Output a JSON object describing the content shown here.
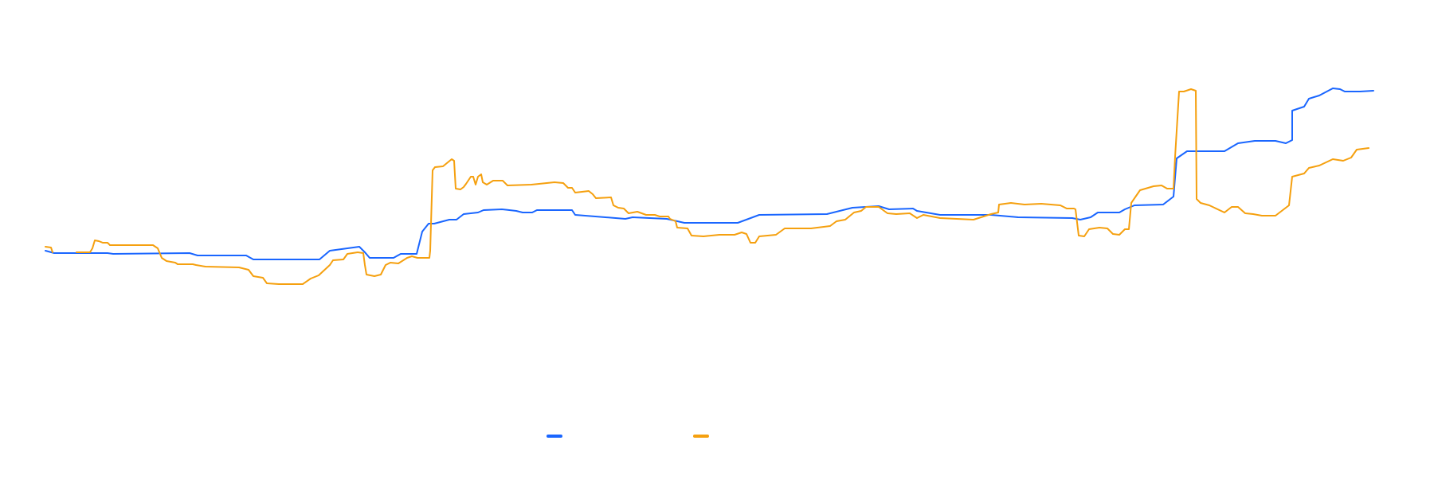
{
  "chart_data": {
    "type": "line",
    "title": "",
    "xlabel": "",
    "ylabel": "",
    "grid": false,
    "legend_placement": "bottom-center",
    "xlim": [
      0,
      1800
    ],
    "ylim": [
      -227,
      400
    ],
    "series": [
      {
        "name": "",
        "color": "#1a66ff",
        "segments": [
          [
            [
              57,
              85
            ],
            [
              68,
              82
            ],
            [
              135,
              82
            ],
            [
              142,
              81
            ],
            [
              238,
              82
            ],
            [
              248,
              79
            ],
            [
              309,
              79
            ],
            [
              318,
              74
            ],
            [
              401,
              74
            ],
            [
              414,
              85
            ],
            [
              451,
              90
            ],
            [
              458,
              83
            ],
            [
              464,
              76
            ],
            [
              494,
              76
            ],
            [
              503,
              81
            ],
            [
              523,
              81
            ],
            [
              530,
              109
            ],
            [
              538,
              119
            ],
            [
              545,
              119
            ],
            [
              564,
              124
            ],
            [
              573,
              124
            ],
            [
              582,
              131
            ],
            [
              600,
              133
            ],
            [
              607,
              136
            ],
            [
              630,
              137
            ],
            [
              648,
              135
            ],
            [
              656,
              133
            ],
            [
              668,
              133
            ],
            [
              674,
              136
            ],
            [
              685,
              136
            ],
            [
              718,
              136
            ],
            [
              722,
              130
            ],
            [
              785,
              125
            ],
            [
              794,
              127
            ],
            [
              837,
              125
            ],
            [
              859,
              120
            ],
            [
              926,
              120
            ],
            [
              953,
              130
            ],
            [
              1038,
              131
            ],
            [
              1070,
              139
            ],
            [
              1103,
              141
            ],
            [
              1116,
              137
            ],
            [
              1146,
              138
            ],
            [
              1151,
              135
            ],
            [
              1180,
              130
            ],
            [
              1244,
              130
            ],
            [
              1278,
              127
            ],
            [
              1346,
              126
            ],
            [
              1356,
              124
            ],
            [
              1369,
              127
            ],
            [
              1378,
              133
            ],
            [
              1405,
              133
            ],
            [
              1412,
              137
            ],
            [
              1424,
              142
            ],
            [
              1460,
              143
            ],
            [
              1473,
              153
            ],
            [
              1477,
              201
            ],
            [
              1490,
              210
            ],
            [
              1537,
              210
            ],
            [
              1554,
              220
            ],
            [
              1575,
              223
            ],
            [
              1601,
              223
            ],
            [
              1614,
              220
            ],
            [
              1622,
              224
            ],
            [
              1622,
              261
            ],
            [
              1637,
              266
            ],
            [
              1643,
              276
            ],
            [
              1656,
              280
            ],
            [
              1673,
              289
            ],
            [
              1682,
              288
            ],
            [
              1688,
              285
            ],
            [
              1707,
              285
            ],
            [
              1724,
              286
            ]
          ]
        ]
      },
      {
        "name": "",
        "color": "#f5a00f",
        "segments": [
          [
            [
              57,
              90
            ],
            [
              64,
              89
            ],
            [
              66,
              83
            ]
          ],
          [
            [
              96,
              83
            ],
            [
              113,
              83
            ],
            [
              116,
              88
            ],
            [
              119,
              98
            ],
            [
              124,
              97
            ],
            [
              129,
              95
            ],
            [
              135,
              95
            ],
            [
              138,
              92
            ],
            [
              192,
              92
            ],
            [
              198,
              88
            ],
            [
              203,
              76
            ],
            [
              209,
              72
            ],
            [
              220,
              70
            ],
            [
              223,
              68
            ],
            [
              242,
              68
            ],
            [
              246,
              67
            ],
            [
              258,
              65
            ],
            [
              300,
              64
            ],
            [
              312,
              61
            ],
            [
              318,
              53
            ],
            [
              330,
              51
            ],
            [
              335,
              44
            ],
            [
              350,
              43
            ],
            [
              380,
              43
            ],
            [
              390,
              50
            ],
            [
              400,
              54
            ],
            [
              414,
              67
            ],
            [
              418,
              73
            ],
            [
              431,
              74
            ],
            [
              436,
              81
            ],
            [
              449,
              83
            ],
            [
              456,
              82
            ],
            [
              458,
              67
            ],
            [
              460,
              55
            ],
            [
              470,
              53
            ],
            [
              478,
              55
            ],
            [
              484,
              67
            ],
            [
              490,
              70
            ],
            [
              500,
              69
            ],
            [
              511,
              76
            ],
            [
              517,
              78
            ],
            [
              524,
              76
            ],
            [
              539,
              76
            ],
            [
              540,
              85
            ],
            [
              543,
              186
            ],
            [
              546,
              190
            ],
            [
              556,
              191
            ],
            [
              567,
              200
            ],
            [
              570,
              198
            ],
            [
              572,
              163
            ],
            [
              578,
              162
            ],
            [
              582,
              165
            ],
            [
              585,
              169
            ],
            [
              591,
              178
            ],
            [
              594,
              178
            ],
            [
              597,
              168
            ],
            [
              600,
              178
            ],
            [
              604,
              181
            ],
            [
              606,
              171
            ],
            [
              611,
              168
            ],
            [
              619,
              173
            ],
            [
              631,
              173
            ],
            [
              637,
              167
            ],
            [
              667,
              168
            ],
            [
              696,
              171
            ],
            [
              707,
              170
            ],
            [
              713,
              164
            ],
            [
              718,
              164
            ],
            [
              722,
              158
            ],
            [
              739,
              160
            ],
            [
              744,
              156
            ],
            [
              748,
              151
            ],
            [
              767,
              152
            ],
            [
              770,
              142
            ],
            [
              776,
              139
            ],
            [
              783,
              138
            ],
            [
              789,
              132
            ],
            [
              800,
              134
            ],
            [
              811,
              130
            ],
            [
              822,
              130
            ],
            [
              828,
              128
            ],
            [
              839,
              128
            ],
            [
              841,
              125
            ],
            [
              848,
              122
            ],
            [
              850,
              114
            ],
            [
              863,
              113
            ],
            [
              868,
              104
            ],
            [
              883,
              103
            ],
            [
              903,
              105
            ],
            [
              922,
              105
            ],
            [
              931,
              108
            ],
            [
              937,
              106
            ],
            [
              942,
              95
            ],
            [
              948,
              95
            ],
            [
              953,
              103
            ],
            [
              974,
              105
            ],
            [
              985,
              113
            ],
            [
              1018,
              113
            ],
            [
              1042,
              116
            ],
            [
              1050,
              122
            ],
            [
              1061,
              124
            ],
            [
              1072,
              133
            ],
            [
              1081,
              135
            ],
            [
              1087,
              140
            ],
            [
              1103,
              140
            ],
            [
              1114,
              132
            ],
            [
              1125,
              131
            ],
            [
              1142,
              132
            ],
            [
              1151,
              126
            ],
            [
              1159,
              130
            ],
            [
              1180,
              126
            ],
            [
              1222,
              124
            ],
            [
              1244,
              131
            ],
            [
              1253,
              133
            ],
            [
              1254,
              143
            ],
            [
              1269,
              145
            ],
            [
              1286,
              143
            ],
            [
              1307,
              144
            ],
            [
              1331,
              142
            ],
            [
              1339,
              138
            ],
            [
              1348,
              138
            ],
            [
              1350,
              137
            ],
            [
              1354,
              104
            ],
            [
              1361,
              103
            ],
            [
              1367,
              112
            ],
            [
              1380,
              114
            ],
            [
              1390,
              113
            ],
            [
              1397,
              106
            ],
            [
              1405,
              105
            ],
            [
              1412,
              112
            ],
            [
              1417,
              112
            ],
            [
              1420,
              145
            ],
            [
              1431,
              161
            ],
            [
              1448,
              166
            ],
            [
              1458,
              167
            ],
            [
              1465,
              163
            ],
            [
              1473,
              163
            ],
            [
              1475,
              203
            ],
            [
              1480,
              285
            ],
            [
              1486,
              285
            ],
            [
              1495,
              288
            ],
            [
              1501,
              286
            ],
            [
              1502,
              150
            ],
            [
              1507,
              145
            ],
            [
              1518,
              142
            ],
            [
              1537,
              133
            ],
            [
              1546,
              140
            ],
            [
              1554,
              140
            ],
            [
              1563,
              132
            ],
            [
              1573,
              131
            ],
            [
              1584,
              129
            ],
            [
              1601,
              129
            ],
            [
              1618,
              142
            ],
            [
              1622,
              178
            ],
            [
              1637,
              182
            ],
            [
              1643,
              189
            ],
            [
              1656,
              192
            ],
            [
              1673,
              200
            ],
            [
              1686,
              198
            ],
            [
              1696,
              202
            ],
            [
              1703,
              212
            ],
            [
              1718,
              214
            ]
          ]
        ]
      }
    ]
  }
}
